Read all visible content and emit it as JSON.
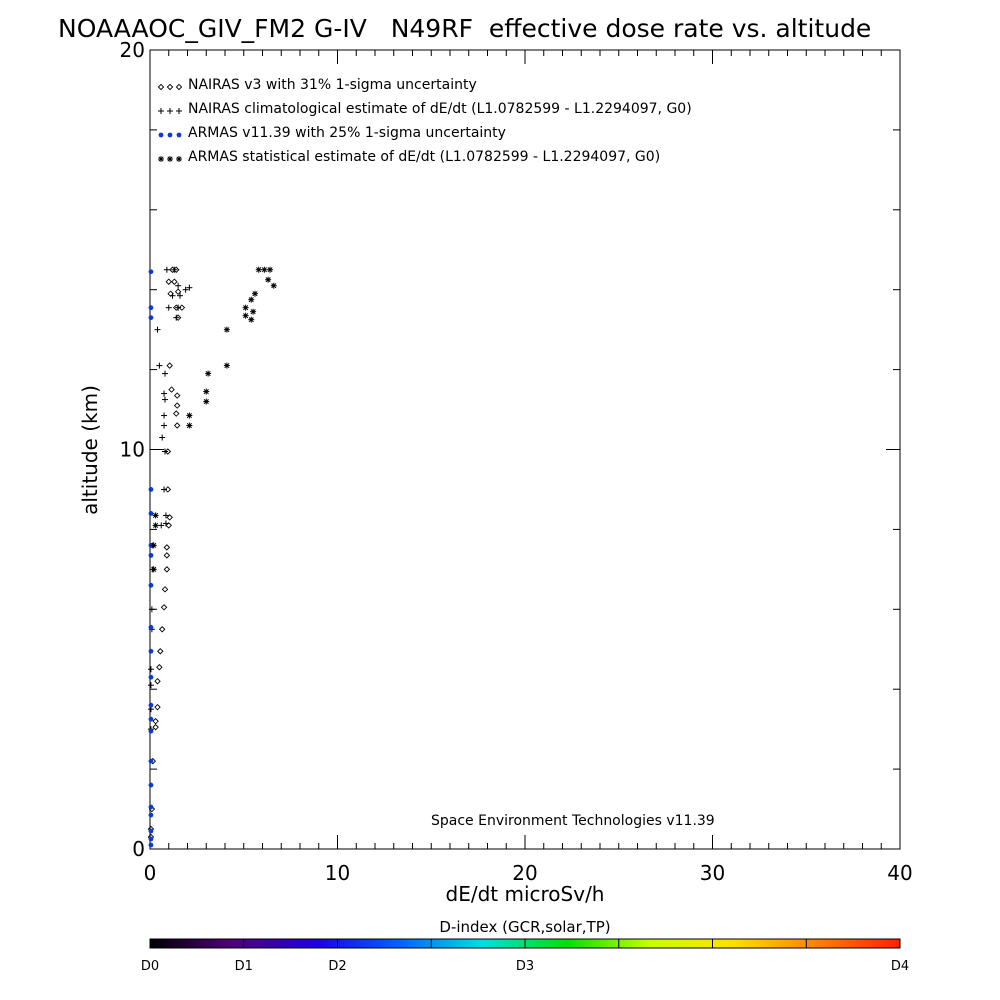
{
  "chart_data": {
    "type": "scatter",
    "title": "NOAAAOC_GIV_FM2 G-IV   N49RF  effective dose rate vs. altitude",
    "xlabel": "dE/dt microSv/h",
    "ylabel": "altitude (km)",
    "xlim": [
      0,
      40
    ],
    "ylim": [
      0,
      20
    ],
    "x_ticks": [
      "0",
      "10",
      "20",
      "30",
      "40"
    ],
    "y_ticks": [
      "0",
      "10",
      "20"
    ],
    "legend_position": "top-left",
    "credit": "Space Environment Technologies v11.39",
    "series": [
      {
        "name": "NAIRAS v3 with 31% 1-sigma uncertainty",
        "marker": "diamond",
        "color": "#000000",
        "points": [
          [
            1.05,
            12.1
          ],
          [
            1.15,
            11.5
          ],
          [
            1.45,
            11.35
          ],
          [
            1.45,
            11.1
          ],
          [
            1.4,
            10.9
          ],
          [
            1.45,
            10.6
          ],
          [
            0.95,
            9.95
          ],
          [
            0.95,
            9.0
          ],
          [
            1.05,
            8.3
          ],
          [
            1.0,
            8.1
          ],
          [
            0.9,
            7.55
          ],
          [
            0.9,
            7.35
          ],
          [
            0.9,
            7.0
          ],
          [
            0.8,
            6.5
          ],
          [
            0.75,
            6.05
          ],
          [
            0.65,
            5.5
          ],
          [
            0.55,
            4.95
          ],
          [
            0.5,
            4.55
          ],
          [
            0.4,
            4.2
          ],
          [
            0.4,
            3.55
          ],
          [
            0.3,
            3.2
          ],
          [
            0.3,
            3.05
          ],
          [
            0.15,
            2.2
          ],
          [
            0.1,
            1.0
          ],
          [
            0.05,
            0.5
          ],
          [
            0.05,
            0.3
          ],
          [
            1.2,
            14.5
          ],
          [
            1.4,
            14.5
          ],
          [
            1.0,
            14.2
          ],
          [
            1.3,
            14.2
          ],
          [
            1.1,
            13.9
          ],
          [
            1.5,
            13.95
          ],
          [
            1.4,
            13.55
          ],
          [
            1.7,
            13.55
          ],
          [
            1.5,
            13.3
          ]
        ]
      },
      {
        "name": "NAIRAS climatological estimate of dE/dt (L1.0782599 - L1.2294097, G0)",
        "marker": "plus",
        "color": "#000000",
        "points": [
          [
            0.5,
            12.1
          ],
          [
            0.8,
            11.9
          ],
          [
            0.75,
            11.4
          ],
          [
            0.8,
            11.25
          ],
          [
            0.75,
            10.85
          ],
          [
            0.75,
            10.6
          ],
          [
            0.65,
            10.3
          ],
          [
            0.8,
            9.95
          ],
          [
            0.75,
            9.0
          ],
          [
            0.85,
            8.35
          ],
          [
            0.85,
            8.15
          ],
          [
            0.6,
            8.1
          ],
          [
            0.15,
            7.6
          ],
          [
            0.15,
            7.0
          ],
          [
            0.1,
            6.0
          ],
          [
            0.1,
            5.5
          ],
          [
            0.05,
            4.5
          ],
          [
            0.05,
            4.1
          ],
          [
            0.05,
            3.5
          ],
          [
            0.05,
            3.0
          ],
          [
            0.4,
            13.0
          ],
          [
            0.9,
            14.5
          ],
          [
            1.3,
            14.5
          ],
          [
            1.5,
            14.1
          ],
          [
            1.9,
            14.0
          ],
          [
            2.1,
            14.05
          ],
          [
            1.2,
            13.85
          ],
          [
            1.6,
            13.85
          ],
          [
            1.0,
            13.55
          ],
          [
            1.5,
            13.55
          ],
          [
            1.4,
            13.3
          ]
        ]
      },
      {
        "name": "ARMAS v11.39 with 25% 1-sigma uncertainty",
        "marker": "dot",
        "color": "#0a3ad6",
        "points": [
          [
            0.05,
            14.45
          ],
          [
            0.05,
            13.55
          ],
          [
            0.05,
            13.3
          ],
          [
            0.05,
            9.0
          ],
          [
            0.05,
            8.4
          ],
          [
            0.05,
            7.6
          ],
          [
            0.05,
            7.35
          ],
          [
            0.05,
            6.6
          ],
          [
            0.05,
            5.55
          ],
          [
            0.05,
            4.95
          ],
          [
            0.05,
            4.3
          ],
          [
            0.05,
            3.6
          ],
          [
            0.05,
            3.25
          ],
          [
            0.05,
            2.95
          ],
          [
            0.05,
            2.2
          ],
          [
            0.05,
            1.6
          ],
          [
            0.05,
            1.05
          ],
          [
            0.05,
            0.85
          ],
          [
            0.05,
            0.45
          ],
          [
            0.05,
            0.25
          ],
          [
            0.05,
            0.1
          ]
        ]
      },
      {
        "name": "ARMAS statistical estimate of dE/dt (L1.0782599 - L1.2294097, G0)",
        "marker": "asterisk",
        "color": "#000000",
        "points": [
          [
            5.8,
            14.5
          ],
          [
            6.1,
            14.5
          ],
          [
            6.4,
            14.5
          ],
          [
            6.3,
            14.25
          ],
          [
            6.6,
            14.1
          ],
          [
            5.6,
            13.9
          ],
          [
            5.4,
            13.75
          ],
          [
            5.1,
            13.55
          ],
          [
            5.5,
            13.45
          ],
          [
            5.1,
            13.35
          ],
          [
            5.4,
            13.25
          ],
          [
            4.1,
            13.0
          ],
          [
            4.1,
            12.1
          ],
          [
            3.1,
            11.9
          ],
          [
            3.0,
            11.45
          ],
          [
            3.0,
            11.2
          ],
          [
            2.1,
            10.85
          ],
          [
            2.1,
            10.6
          ],
          [
            0.3,
            8.35
          ],
          [
            0.3,
            8.1
          ],
          [
            0.2,
            7.6
          ],
          [
            0.2,
            7.0
          ]
        ]
      }
    ],
    "colorbar": {
      "title": "D-index (GCR,solar,TP)",
      "labels": [
        "D0",
        "D1",
        "D2",
        "D3",
        "D4"
      ],
      "stops": [
        "#000000",
        "#50007a",
        "#1e00e0",
        "#0064ff",
        "#00e0e0",
        "#00e000",
        "#c8ff00",
        "#ffe000",
        "#ff8000",
        "#ff2000"
      ]
    }
  }
}
